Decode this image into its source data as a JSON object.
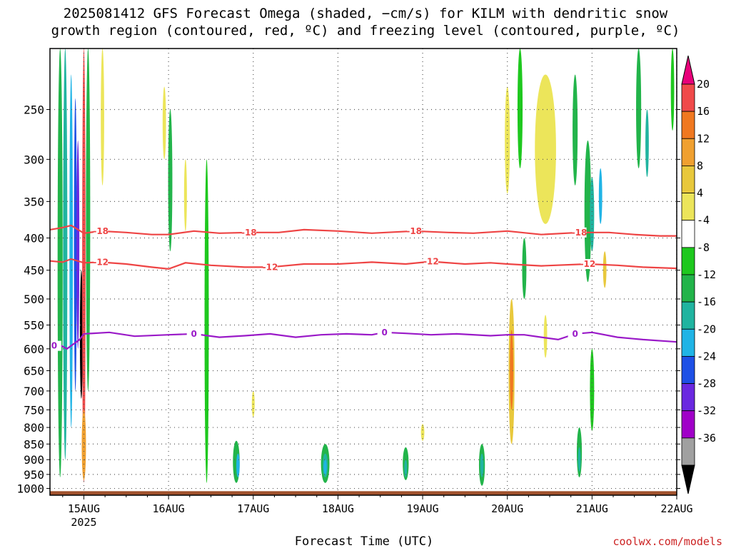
{
  "chart_data": {
    "type": "heatmap",
    "title_lines": [
      "2025081412 GFS Forecast Omega (shaded, −cm/s) for KILM with dendritic snow",
      "growth region (contoured, red, ºC) and freezing level (contoured, purple, ºC)"
    ],
    "xlabel": "Forecast Time (UTC)",
    "ylabel": "",
    "x_ticks": [
      "15AUG",
      "16AUG",
      "17AUG",
      "18AUG",
      "19AUG",
      "20AUG",
      "21AUG",
      "22AUG"
    ],
    "x_tick_sublabel": "2025",
    "x_range_days": [
      14.6,
      22.0
    ],
    "y_ticks": [
      250,
      300,
      350,
      400,
      450,
      500,
      550,
      600,
      650,
      700,
      750,
      800,
      850,
      900,
      950,
      1000
    ],
    "y_range_hpa": [
      200,
      1025
    ],
    "y_scale": "log",
    "grid": true,
    "colorbar": {
      "labels": [
        "20",
        "16",
        "12",
        "8",
        "4",
        "-4",
        "-8",
        "-12",
        "-16",
        "-20",
        "-24",
        "-28",
        "-32",
        "-36"
      ],
      "bands": [
        {
          "color": "#e8007a",
          "kind": "top-triangle"
        },
        {
          "color": "#f04a4a"
        },
        {
          "color": "#f07820"
        },
        {
          "color": "#f0a030"
        },
        {
          "color": "#e8c83c"
        },
        {
          "color": "#ece55a"
        },
        {
          "color": "#ffffff"
        },
        {
          "color": "#1ec81e"
        },
        {
          "color": "#22b44a"
        },
        {
          "color": "#20b4a0"
        },
        {
          "color": "#20b4e6"
        },
        {
          "color": "#1e50e6"
        },
        {
          "color": "#6a28e0"
        },
        {
          "color": "#a000c8"
        },
        {
          "color": "#a0a0a0"
        },
        {
          "color": "#000000",
          "kind": "bottom-triangle"
        }
      ]
    },
    "contours": [
      {
        "name": "-18",
        "color": "#ee4444",
        "label_positions_day": [
          15.2,
          16.95,
          18.9,
          20.85
        ],
        "points": [
          [
            14.6,
            388
          ],
          [
            14.75,
            385
          ],
          [
            14.85,
            382
          ],
          [
            15.0,
            393
          ],
          [
            15.2,
            390
          ],
          [
            15.5,
            392
          ],
          [
            15.8,
            395
          ],
          [
            16.0,
            395
          ],
          [
            16.3,
            390
          ],
          [
            16.6,
            393
          ],
          [
            16.95,
            392
          ],
          [
            17.3,
            392
          ],
          [
            17.6,
            388
          ],
          [
            18.0,
            390
          ],
          [
            18.4,
            393
          ],
          [
            18.9,
            390
          ],
          [
            19.3,
            392
          ],
          [
            19.6,
            393
          ],
          [
            20.0,
            390
          ],
          [
            20.4,
            395
          ],
          [
            20.85,
            392
          ],
          [
            21.2,
            392
          ],
          [
            21.5,
            395
          ],
          [
            21.8,
            397
          ],
          [
            22.0,
            397
          ]
        ]
      },
      {
        "name": "-12",
        "color": "#ee4444",
        "label_positions_day": [
          15.2,
          17.2,
          19.1,
          20.95
        ],
        "points": [
          [
            14.6,
            435
          ],
          [
            14.75,
            437
          ],
          [
            14.85,
            432
          ],
          [
            15.0,
            438
          ],
          [
            15.2,
            437
          ],
          [
            15.5,
            440
          ],
          [
            15.8,
            445
          ],
          [
            16.0,
            448
          ],
          [
            16.2,
            438
          ],
          [
            16.5,
            442
          ],
          [
            16.9,
            445
          ],
          [
            17.2,
            445
          ],
          [
            17.6,
            440
          ],
          [
            18.0,
            440
          ],
          [
            18.4,
            437
          ],
          [
            18.8,
            440
          ],
          [
            19.1,
            436
          ],
          [
            19.5,
            440
          ],
          [
            19.8,
            438
          ],
          [
            20.0,
            440
          ],
          [
            20.4,
            443
          ],
          [
            20.95,
            440
          ],
          [
            21.3,
            442
          ],
          [
            21.6,
            445
          ],
          [
            22.0,
            447
          ]
        ]
      },
      {
        "name": "0",
        "color": "#9a1ac8",
        "label_positions_day": [
          14.65,
          16.3,
          18.55,
          20.8
        ],
        "points": [
          [
            14.6,
            597
          ],
          [
            14.7,
            590
          ],
          [
            14.8,
            600
          ],
          [
            14.95,
            580
          ],
          [
            15.0,
            568
          ],
          [
            15.3,
            565
          ],
          [
            15.6,
            573
          ],
          [
            16.0,
            570
          ],
          [
            16.3,
            568
          ],
          [
            16.6,
            575
          ],
          [
            16.9,
            572
          ],
          [
            17.2,
            568
          ],
          [
            17.5,
            575
          ],
          [
            17.8,
            570
          ],
          [
            18.1,
            568
          ],
          [
            18.4,
            570
          ],
          [
            18.55,
            565
          ],
          [
            18.8,
            567
          ],
          [
            19.1,
            570
          ],
          [
            19.4,
            568
          ],
          [
            19.8,
            572
          ],
          [
            20.0,
            570
          ],
          [
            20.2,
            570
          ],
          [
            20.4,
            575
          ],
          [
            20.6,
            580
          ],
          [
            20.8,
            568
          ],
          [
            21.0,
            565
          ],
          [
            21.3,
            575
          ],
          [
            21.6,
            580
          ],
          [
            22.0,
            585
          ]
        ]
      }
    ],
    "omega_blobs": [
      {
        "day": 14.72,
        "p_top": 200,
        "p_bot": 960,
        "w": 0.06,
        "color": "#22b44a"
      },
      {
        "day": 14.78,
        "p_top": 200,
        "p_bot": 900,
        "w": 0.05,
        "color": "#20b4a0"
      },
      {
        "day": 14.85,
        "p_top": 220,
        "p_bot": 800,
        "w": 0.04,
        "color": "#20b4e6"
      },
      {
        "day": 14.9,
        "p_top": 240,
        "p_bot": 700,
        "w": 0.03,
        "color": "#1e50e6"
      },
      {
        "day": 14.93,
        "p_top": 280,
        "p_bot": 600,
        "w": 0.02,
        "color": "#6a28e0"
      },
      {
        "day": 14.97,
        "p_top": 450,
        "p_bot": 720,
        "w": 0.018,
        "color": "#000000"
      },
      {
        "day": 15.0,
        "p_top": 200,
        "p_bot": 980,
        "w": 0.04,
        "color": "#f04a4a"
      },
      {
        "day": 15.0,
        "p_top": 750,
        "p_bot": 970,
        "w": 0.05,
        "color": "#f0a030"
      },
      {
        "day": 15.05,
        "p_top": 200,
        "p_bot": 700,
        "w": 0.05,
        "color": "#22b44a"
      },
      {
        "day": 15.22,
        "p_top": 200,
        "p_bot": 330,
        "w": 0.04,
        "color": "#ece55a"
      },
      {
        "day": 15.95,
        "p_top": 230,
        "p_bot": 300,
        "w": 0.04,
        "color": "#ece55a"
      },
      {
        "day": 16.02,
        "p_top": 250,
        "p_bot": 420,
        "w": 0.05,
        "color": "#22b44a"
      },
      {
        "day": 16.2,
        "p_top": 300,
        "p_bot": 390,
        "w": 0.03,
        "color": "#ece55a"
      },
      {
        "day": 16.45,
        "p_top": 300,
        "p_bot": 980,
        "w": 0.05,
        "color": "#1ec81e"
      },
      {
        "day": 16.8,
        "p_top": 840,
        "p_bot": 980,
        "w": 0.08,
        "color": "#22b44a"
      },
      {
        "day": 16.82,
        "p_top": 880,
        "p_bot": 960,
        "w": 0.04,
        "color": "#20b4e6"
      },
      {
        "day": 17.0,
        "p_top": 700,
        "p_bot": 770,
        "w": 0.03,
        "color": "#ece55a"
      },
      {
        "day": 17.85,
        "p_top": 850,
        "p_bot": 980,
        "w": 0.1,
        "color": "#22b44a"
      },
      {
        "day": 17.85,
        "p_top": 880,
        "p_bot": 960,
        "w": 0.06,
        "color": "#20b4a0"
      },
      {
        "day": 17.85,
        "p_top": 900,
        "p_bot": 950,
        "w": 0.03,
        "color": "#20b4e6"
      },
      {
        "day": 18.8,
        "p_top": 860,
        "p_bot": 970,
        "w": 0.07,
        "color": "#22b44a"
      },
      {
        "day": 18.8,
        "p_top": 900,
        "p_bot": 960,
        "w": 0.03,
        "color": "#20b4a0"
      },
      {
        "day": 19.0,
        "p_top": 790,
        "p_bot": 840,
        "w": 0.04,
        "color": "#ece55a"
      },
      {
        "day": 19.7,
        "p_top": 850,
        "p_bot": 990,
        "w": 0.07,
        "color": "#22b44a"
      },
      {
        "day": 19.7,
        "p_top": 880,
        "p_bot": 960,
        "w": 0.04,
        "color": "#20b4a0"
      },
      {
        "day": 20.0,
        "p_top": 230,
        "p_bot": 340,
        "w": 0.06,
        "color": "#ece55a"
      },
      {
        "day": 20.05,
        "p_top": 500,
        "p_bot": 850,
        "w": 0.07,
        "color": "#e8c83c"
      },
      {
        "day": 20.05,
        "p_top": 560,
        "p_bot": 750,
        "w": 0.04,
        "color": "#f07820"
      },
      {
        "day": 20.15,
        "p_top": 200,
        "p_bot": 310,
        "w": 0.06,
        "color": "#1ec81e"
      },
      {
        "day": 20.2,
        "p_top": 400,
        "p_bot": 500,
        "w": 0.05,
        "color": "#22b44a"
      },
      {
        "day": 20.45,
        "p_top": 220,
        "p_bot": 380,
        "w": 0.25,
        "color": "#ece55a"
      },
      {
        "day": 20.45,
        "p_top": 530,
        "p_bot": 620,
        "w": 0.04,
        "color": "#ece55a"
      },
      {
        "day": 20.8,
        "p_top": 220,
        "p_bot": 330,
        "w": 0.06,
        "color": "#22b44a"
      },
      {
        "day": 20.85,
        "p_top": 800,
        "p_bot": 960,
        "w": 0.06,
        "color": "#22b44a"
      },
      {
        "day": 20.85,
        "p_top": 860,
        "p_bot": 940,
        "w": 0.03,
        "color": "#20b4a0"
      },
      {
        "day": 20.95,
        "p_top": 280,
        "p_bot": 470,
        "w": 0.08,
        "color": "#22b44a"
      },
      {
        "day": 21.0,
        "p_top": 320,
        "p_bot": 420,
        "w": 0.05,
        "color": "#20b4a0"
      },
      {
        "day": 21.1,
        "p_top": 310,
        "p_bot": 380,
        "w": 0.04,
        "color": "#20b4e6"
      },
      {
        "day": 21.0,
        "p_top": 600,
        "p_bot": 810,
        "w": 0.05,
        "color": "#1ec81e"
      },
      {
        "day": 21.15,
        "p_top": 420,
        "p_bot": 480,
        "w": 0.04,
        "color": "#e8c83c"
      },
      {
        "day": 21.55,
        "p_top": 200,
        "p_bot": 310,
        "w": 0.06,
        "color": "#22b44a"
      },
      {
        "day": 21.65,
        "p_top": 250,
        "p_bot": 320,
        "w": 0.04,
        "color": "#20b4a0"
      },
      {
        "day": 21.95,
        "p_top": 200,
        "p_bot": 270,
        "w": 0.04,
        "color": "#1ec81e"
      }
    ],
    "ground": {
      "p_from": 1010,
      "p_to": 1025,
      "color": "#a0522d"
    }
  },
  "credit": "coolwx.com/models",
  "colors": {
    "grid": "#555555",
    "frame": "#000000",
    "red_contour": "#ee4444",
    "purple_contour": "#9a1ac8",
    "credit": "#cc2222"
  }
}
